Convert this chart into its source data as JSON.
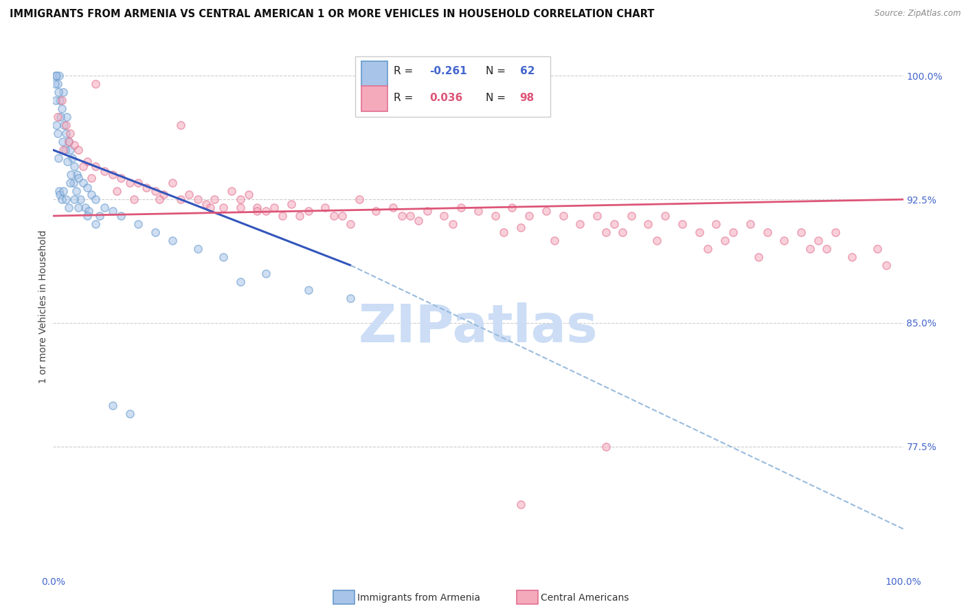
{
  "title": "IMMIGRANTS FROM ARMENIA VS CENTRAL AMERICAN 1 OR MORE VEHICLES IN HOUSEHOLD CORRELATION CHART",
  "source": "Source: ZipAtlas.com",
  "ylabel": "1 or more Vehicles in Household",
  "xmin": 0.0,
  "xmax": 100.0,
  "ymin": 70.0,
  "ymax": 102.0,
  "yticks": [
    77.5,
    85.0,
    92.5,
    100.0
  ],
  "ytick_labels": [
    "77.5%",
    "85.0%",
    "92.5%",
    "100.0%"
  ],
  "legend_R1": "-0.261",
  "legend_N1": "62",
  "legend_R2": "0.036",
  "legend_N2": "98",
  "legend_label1": "Immigrants from Armenia",
  "legend_label2": "Central Americans",
  "blue_color": "#a8c4e8",
  "blue_edge": "#6699cc",
  "pink_color": "#f5aabc",
  "pink_edge": "#e07090",
  "blue_line_color": "#3355bb",
  "pink_line_color": "#dd5577",
  "dashed_line_color": "#99bbdd",
  "title_fontsize": 10.5,
  "axis_color": "#4466cc",
  "watermark_text": "ZIPatlas",
  "watermark_color": "#ccddf5",
  "background_color": "#ffffff",
  "grid_color": "#cccccc",
  "blue_scatter_x": [
    0.3,
    0.5,
    0.7,
    0.8,
    1.0,
    1.2,
    1.3,
    1.5,
    1.6,
    1.8,
    2.0,
    2.2,
    2.5,
    2.8,
    3.0,
    3.5,
    4.0,
    4.5,
    5.0,
    6.0,
    7.0,
    8.0,
    10.0,
    12.0,
    14.0,
    17.0,
    20.0,
    25.0,
    30.0,
    35.0,
    0.4,
    0.6,
    0.9,
    1.1,
    1.4,
    1.7,
    2.1,
    2.4,
    2.7,
    3.2,
    3.8,
    4.2,
    5.5,
    0.2,
    0.3,
    0.4,
    0.5,
    0.6,
    0.7,
    0.8,
    1.0,
    1.2,
    1.5,
    1.8,
    2.0,
    2.5,
    3.0,
    4.0,
    5.0,
    7.0,
    9.0,
    22.0
  ],
  "blue_scatter_y": [
    100.0,
    99.5,
    100.0,
    98.5,
    98.0,
    99.0,
    97.0,
    96.5,
    97.5,
    96.0,
    95.5,
    95.0,
    94.5,
    94.0,
    93.8,
    93.5,
    93.2,
    92.8,
    92.5,
    92.0,
    91.8,
    91.5,
    91.0,
    90.5,
    90.0,
    89.5,
    89.0,
    88.0,
    87.0,
    86.5,
    100.0,
    99.0,
    97.5,
    96.0,
    95.5,
    94.8,
    94.0,
    93.5,
    93.0,
    92.5,
    92.0,
    91.8,
    91.5,
    99.5,
    98.5,
    97.0,
    96.5,
    95.0,
    93.0,
    92.8,
    92.5,
    93.0,
    92.5,
    92.0,
    93.5,
    92.5,
    92.0,
    91.5,
    91.0,
    80.0,
    79.5,
    87.5
  ],
  "pink_scatter_x": [
    1.0,
    1.5,
    2.0,
    2.5,
    3.0,
    4.0,
    5.0,
    6.0,
    7.0,
    8.0,
    9.0,
    10.0,
    11.0,
    12.0,
    13.0,
    14.0,
    15.0,
    16.0,
    17.0,
    18.0,
    19.0,
    20.0,
    21.0,
    22.0,
    23.0,
    24.0,
    25.0,
    26.0,
    27.0,
    28.0,
    30.0,
    32.0,
    34.0,
    36.0,
    38.0,
    40.0,
    42.0,
    44.0,
    46.0,
    48.0,
    50.0,
    52.0,
    54.0,
    56.0,
    58.0,
    60.0,
    62.0,
    64.0,
    66.0,
    68.0,
    70.0,
    72.0,
    74.0,
    76.0,
    78.0,
    80.0,
    82.0,
    84.0,
    86.0,
    88.0,
    90.0,
    92.0,
    0.5,
    1.8,
    3.5,
    7.5,
    12.5,
    18.5,
    24.0,
    29.0,
    35.0,
    41.0,
    47.0,
    53.0,
    59.0,
    65.0,
    71.0,
    77.0,
    83.0,
    89.0,
    94.0,
    97.0,
    1.2,
    4.5,
    9.5,
    22.0,
    33.0,
    43.0,
    55.0,
    67.0,
    79.0,
    91.0,
    98.0,
    5.0,
    15.0,
    45.0,
    55.0,
    65.0
  ],
  "pink_scatter_y": [
    98.5,
    97.0,
    96.5,
    95.8,
    95.5,
    94.8,
    94.5,
    94.2,
    94.0,
    93.8,
    93.5,
    93.5,
    93.2,
    93.0,
    92.8,
    93.5,
    92.5,
    92.8,
    92.5,
    92.2,
    92.5,
    92.0,
    93.0,
    92.5,
    92.8,
    92.0,
    91.8,
    92.0,
    91.5,
    92.2,
    91.8,
    92.0,
    91.5,
    92.5,
    91.8,
    92.0,
    91.5,
    91.8,
    91.5,
    92.0,
    91.8,
    91.5,
    92.0,
    91.5,
    91.8,
    91.5,
    91.0,
    91.5,
    91.0,
    91.5,
    91.0,
    91.5,
    91.0,
    90.5,
    91.0,
    90.5,
    91.0,
    90.5,
    90.0,
    90.5,
    90.0,
    90.5,
    97.5,
    96.0,
    94.5,
    93.0,
    92.5,
    92.0,
    91.8,
    91.5,
    91.0,
    91.5,
    91.0,
    90.5,
    90.0,
    90.5,
    90.0,
    89.5,
    89.0,
    89.5,
    89.0,
    89.5,
    95.5,
    93.8,
    92.5,
    92.0,
    91.5,
    91.2,
    90.8,
    90.5,
    90.0,
    89.5,
    88.5,
    99.5,
    97.0,
    100.0,
    74.0,
    77.5
  ],
  "blue_line_x": [
    0.0,
    35.0
  ],
  "blue_line_y": [
    95.5,
    88.5
  ],
  "pink_line_x": [
    0.0,
    100.0
  ],
  "pink_line_y": [
    91.5,
    92.5
  ],
  "dashed_line_x": [
    35.0,
    100.0
  ],
  "dashed_line_y": [
    88.5,
    72.5
  ],
  "scatter_size": 65,
  "scatter_alpha": 0.55,
  "scatter_lw": 1.2
}
